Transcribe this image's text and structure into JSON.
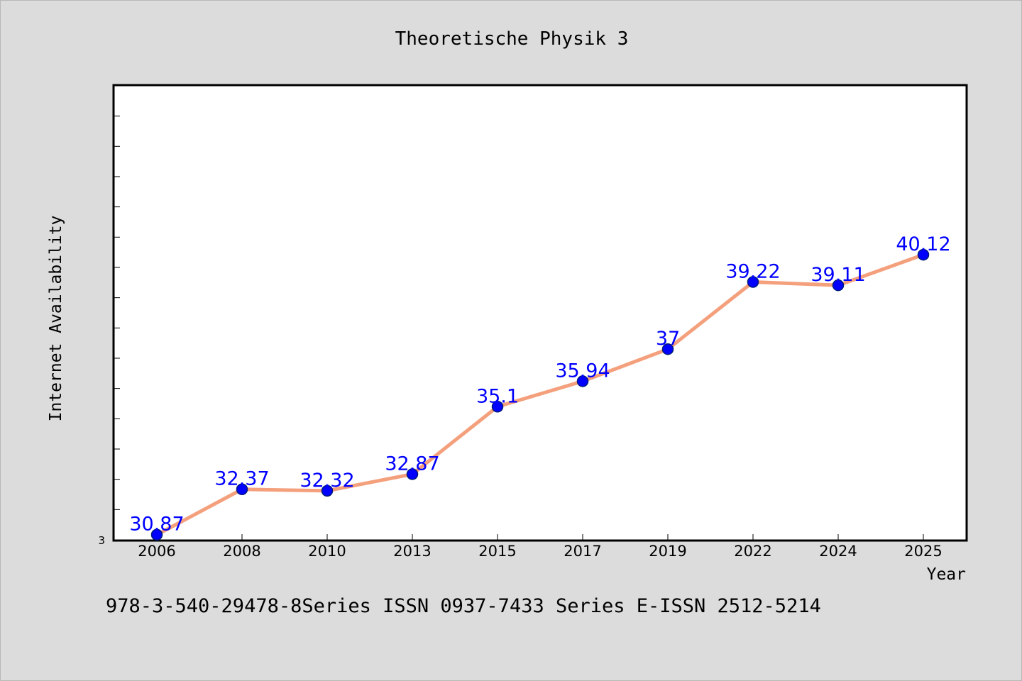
{
  "chart_data": {
    "type": "line",
    "title": "Theoretische Physik 3",
    "xlabel": "Year",
    "ylabel": "Internet Availability",
    "categories": [
      "2006",
      "2008",
      "2010",
      "2013",
      "2015",
      "2017",
      "2019",
      "2022",
      "2024",
      "2025"
    ],
    "series": [
      {
        "values": [
          30.87,
          32.37,
          32.32,
          32.87,
          35.1,
          35.94,
          37,
          39.22,
          39.11,
          40.12
        ],
        "labels": [
          "30.87",
          "32.37",
          "32.32",
          "32.87",
          "35.1",
          "35.94",
          "37",
          "39.22",
          "39.11",
          "40.12"
        ]
      }
    ],
    "y_tick_label": "3",
    "ylim": [
      30.7,
      45.7
    ],
    "grid": false,
    "colors": {
      "line": "#f4a07c",
      "marker": "#0000ff",
      "label": "#0000ff",
      "plot_bg": "#ffffff",
      "page_bg": "#dcdcdc"
    }
  },
  "footer_text": "978-3-540-29478-8Series ISSN 0937-7433 Series E-ISSN 2512-5214"
}
